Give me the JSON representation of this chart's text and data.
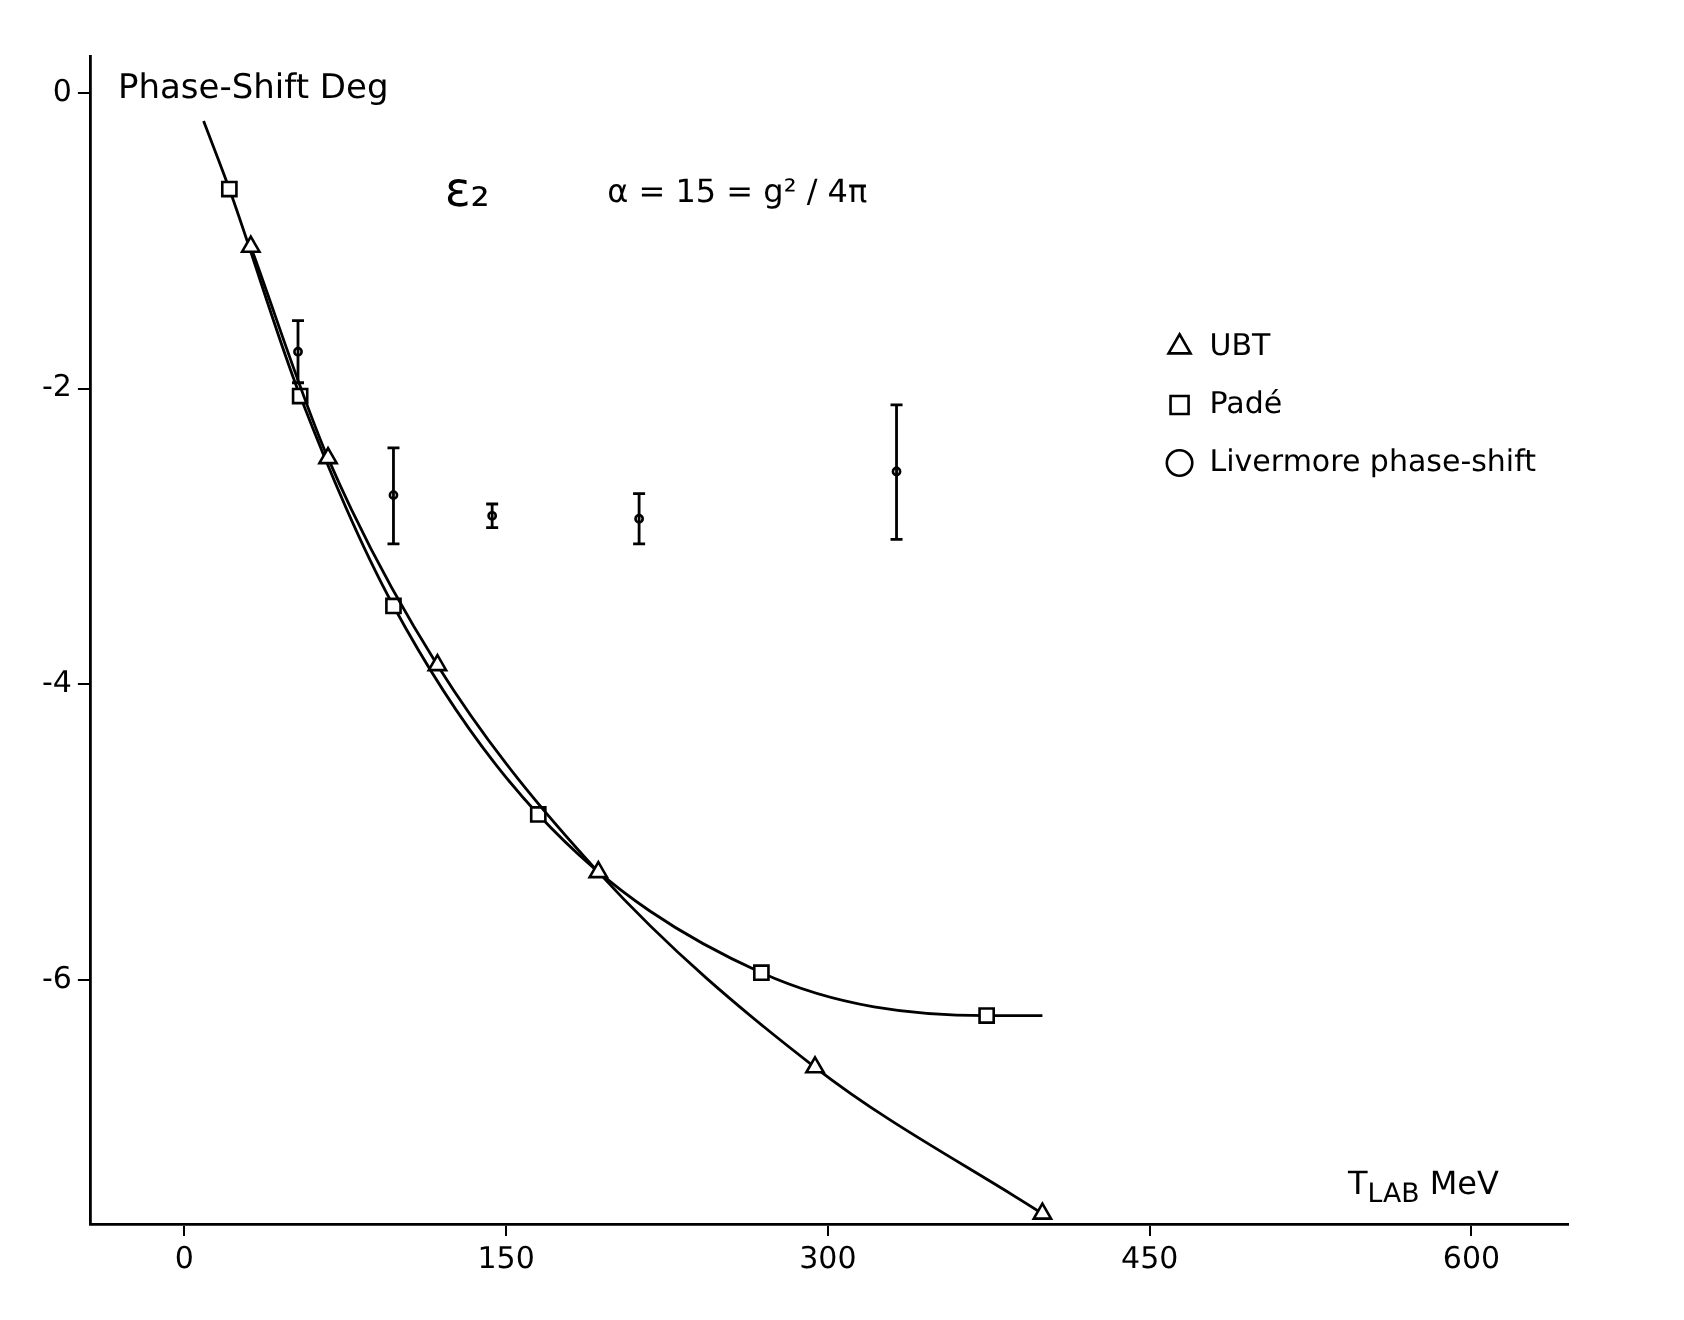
{
  "chart_data": {
    "type": "line",
    "xlabel": "T$_{LAB}$ MeV",
    "ylabel": "Phase-Shift Deg",
    "annotations": [
      "ε₂",
      "α = 15 = g² / 4π"
    ],
    "xlim": [
      -44,
      645
    ],
    "xticks": [
      0,
      150,
      300,
      450,
      600
    ],
    "ylim": [
      -7.65,
      0.25
    ],
    "yticks": [
      0,
      -2,
      -4,
      -6
    ],
    "legend": "top right",
    "series": [
      {
        "name": "UBT",
        "type": "line",
        "color": "#000000",
        "marker": "triangle",
        "x": [
          31,
          67,
          118,
          193,
          294,
          400
        ],
        "values": [
          -1.04,
          -2.47,
          -3.87,
          -5.27,
          -6.59,
          -7.58
        ]
      },
      {
        "name": "Padé",
        "type": "line",
        "color": "#000000",
        "marker": "square",
        "x": [
          9,
          21,
          54,
          97.5,
          165,
          269,
          374,
          400
        ],
        "values": [
          -0.19,
          -0.65,
          -2.05,
          -3.47,
          -4.88,
          -5.95,
          -6.24,
          -6.24
        ]
      },
      {
        "name": "Livermore phase-shift",
        "type": "scatter",
        "color": "#000000",
        "marker": "circle",
        "x": [
          53,
          97.5,
          143.5,
          212,
          332
        ],
        "values": [
          -1.75,
          -2.72,
          -2.86,
          -2.88,
          -2.56
        ],
        "errors": [
          [
            -1.96,
            -1.54
          ],
          [
            -3.05,
            -2.4
          ],
          [
            -2.94,
            -2.78
          ],
          [
            -3.05,
            -2.71
          ],
          [
            -3.02,
            -2.11
          ]
        ]
      }
    ]
  }
}
